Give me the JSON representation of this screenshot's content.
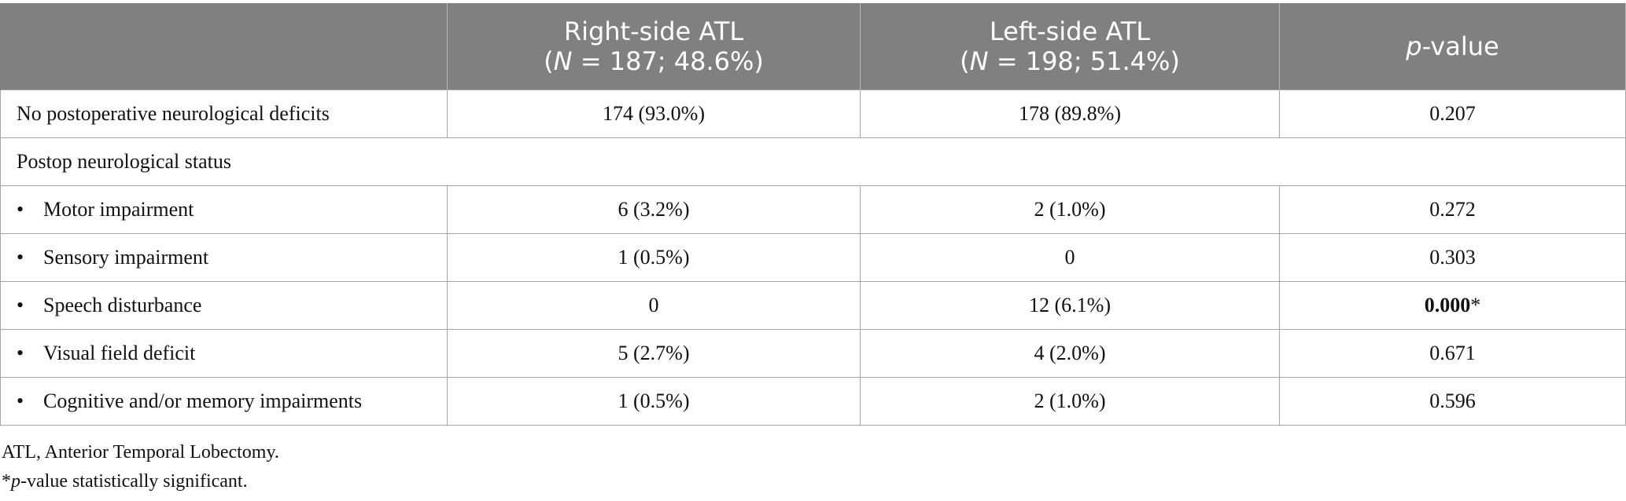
{
  "table": {
    "headers": [
      {
        "line1": "",
        "line2": ""
      },
      {
        "line1": "Right-side ATL",
        "line2_pre": "(",
        "line2_italic": "N",
        "line2_post": " = 187; 48.6%)"
      },
      {
        "line1": "Left-side ATL",
        "line2_pre": "(",
        "line2_italic": "N",
        "line2_post": " = 198; 51.4%)"
      },
      {
        "line1_italic": "p",
        "line1_post": "-value"
      }
    ],
    "rows": [
      {
        "label": "No postoperative neurological deficits",
        "right": "174 (93.0%)",
        "left": "178 (89.8%)",
        "p": "0.207"
      },
      {
        "label": "Postop neurological status"
      },
      {
        "bullet": "•",
        "label": "Motor impairment",
        "right": "6 (3.2%)",
        "left": "2 (1.0%)",
        "p": "0.272"
      },
      {
        "bullet": "•",
        "label": "Sensory impairment",
        "right": "1 (0.5%)",
        "left": "0",
        "p": "0.303"
      },
      {
        "bullet": "•",
        "label": "Speech disturbance",
        "right": "0",
        "left": "12 (6.1%)",
        "p_bold": "0.000",
        "p_mark": "*"
      },
      {
        "bullet": "•",
        "label": "Visual field deficit",
        "right": "5 (2.7%)",
        "left": "4 (2.0%)",
        "p": "0.671"
      },
      {
        "bullet": "•",
        "label": "Cognitive and/or memory impairments",
        "right": "1 (0.5%)",
        "left": "2 (1.0%)",
        "p": "0.596"
      }
    ]
  },
  "notes": {
    "abbrev": "ATL, Anterior Temporal Lobectomy.",
    "sig_star": "*",
    "sig_italic": "p",
    "sig_rest": "-value statistically significant."
  },
  "colors": {
    "header_bg": "#808080",
    "header_text": "#ffffff",
    "border": "#a6a6a6"
  }
}
